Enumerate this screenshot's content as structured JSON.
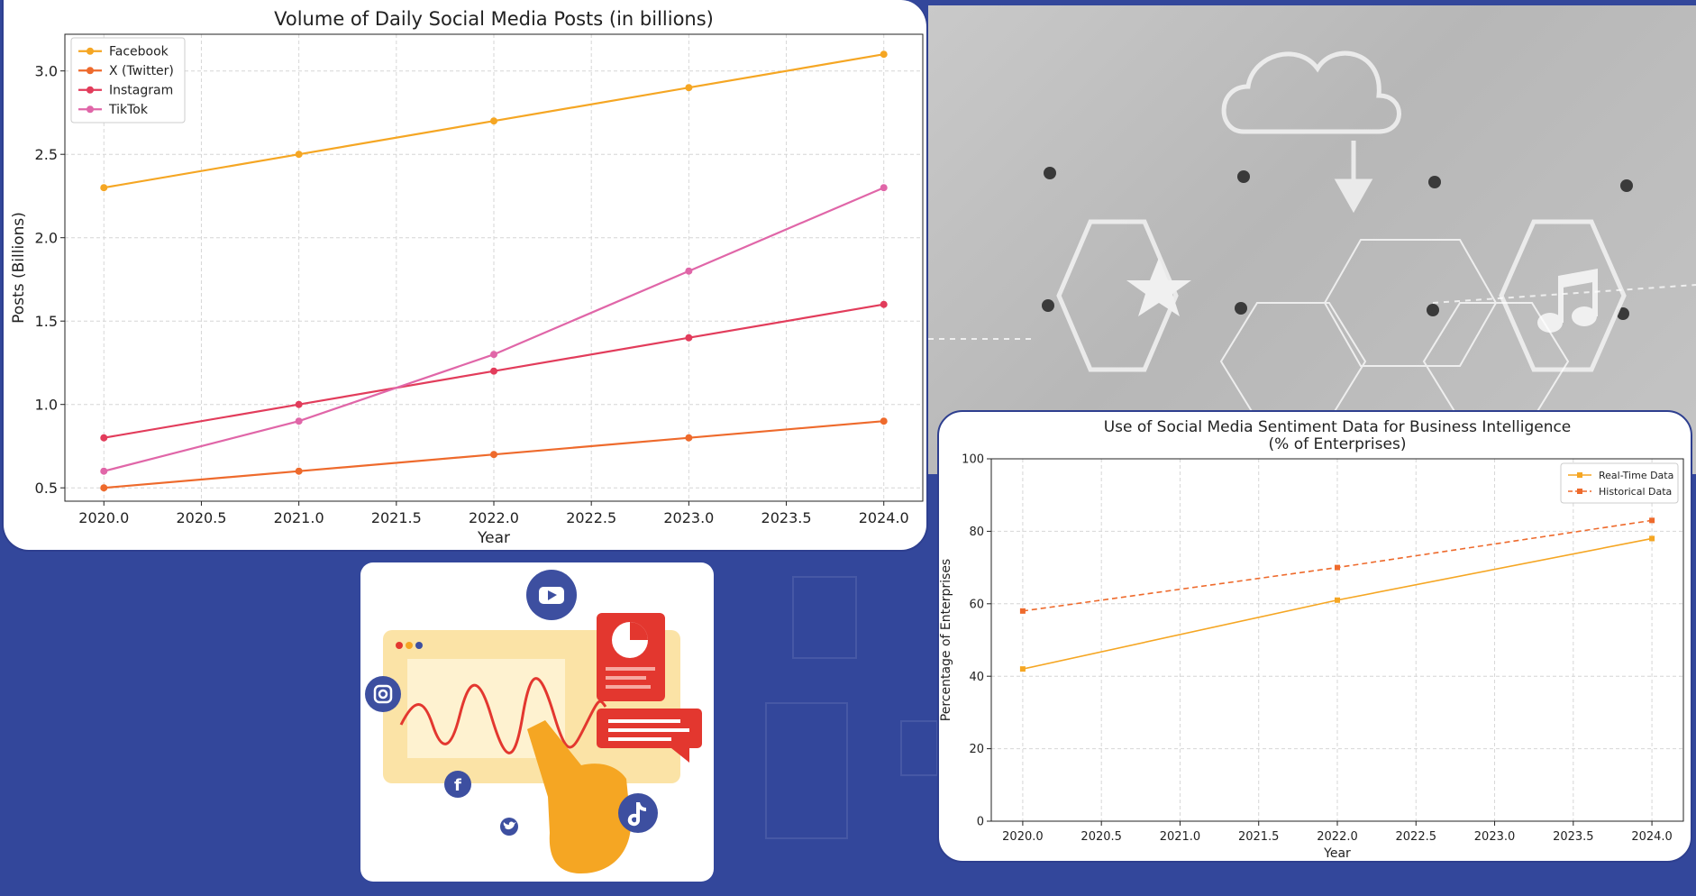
{
  "colors": {
    "background": "#33479b",
    "facebook": "#f5a623",
    "x_twitter": "#ee6a2c",
    "instagram": "#e23c5b",
    "tiktok": "#e066a8",
    "realtime": "#f5a623",
    "historical": "#ee6a2c"
  },
  "illustration": {
    "icons": [
      "youtube-icon",
      "instagram-icon",
      "facebook-icon",
      "twitter-icon",
      "tiktok-icon",
      "pie-chart-icon",
      "chat-bubble-icon",
      "hand-pointer-icon"
    ]
  },
  "photo": {
    "icons": [
      "cloud-download-icon",
      "star-icon",
      "music-note-icon"
    ]
  },
  "chart_data": [
    {
      "type": "line",
      "title": "Volume of Daily Social Media Posts (in billions)",
      "xlabel": "Year",
      "ylabel": "Posts (Billions)",
      "x": [
        2020,
        2021,
        2022,
        2023,
        2024
      ],
      "xticks": [
        "2020.0",
        "2020.5",
        "2021.0",
        "2021.5",
        "2022.0",
        "2022.5",
        "2023.0",
        "2023.5",
        "2024.0"
      ],
      "yticks": [
        "0.5",
        "1.0",
        "1.5",
        "2.0",
        "2.5",
        "3.0"
      ],
      "xlim": [
        2019.8,
        2024.2
      ],
      "ylim": [
        0.42,
        3.22
      ],
      "grid": true,
      "legend": "top-left",
      "series": [
        {
          "name": "Facebook",
          "values": [
            2.3,
            2.5,
            2.7,
            2.9,
            3.1
          ],
          "color": "#f5a623"
        },
        {
          "name": "X (Twitter)",
          "values": [
            0.5,
            0.6,
            0.7,
            0.8,
            0.9
          ],
          "color": "#ee6a2c"
        },
        {
          "name": "Instagram",
          "values": [
            0.8,
            1.0,
            1.2,
            1.4,
            1.6
          ],
          "color": "#e23c5b"
        },
        {
          "name": "TikTok",
          "values": [
            0.6,
            0.9,
            1.3,
            1.8,
            2.3
          ],
          "color": "#e066a8"
        }
      ]
    },
    {
      "type": "line",
      "title": "Use of Social Media Sentiment Data for Business Intelligence",
      "subtitle": "(% of Enterprises)",
      "xlabel": "Year",
      "ylabel": "Percentage of Enterprises",
      "x": [
        2020,
        2022,
        2024
      ],
      "xticks": [
        "2020.0",
        "2020.5",
        "2021.0",
        "2021.5",
        "2022.0",
        "2022.5",
        "2023.0",
        "2023.5",
        "2024.0"
      ],
      "yticks": [
        "0",
        "20",
        "40",
        "60",
        "80",
        "100"
      ],
      "xlim": [
        2019.8,
        2024.2
      ],
      "ylim": [
        0,
        100
      ],
      "grid": true,
      "legend": "top-right",
      "series": [
        {
          "name": "Real-Time Data",
          "values": [
            42,
            61,
            78
          ],
          "color": "#f5a623",
          "dash": "solid"
        },
        {
          "name": "Historical Data",
          "values": [
            58,
            70,
            83
          ],
          "color": "#ee6a2c",
          "dash": "dashed"
        }
      ]
    }
  ]
}
